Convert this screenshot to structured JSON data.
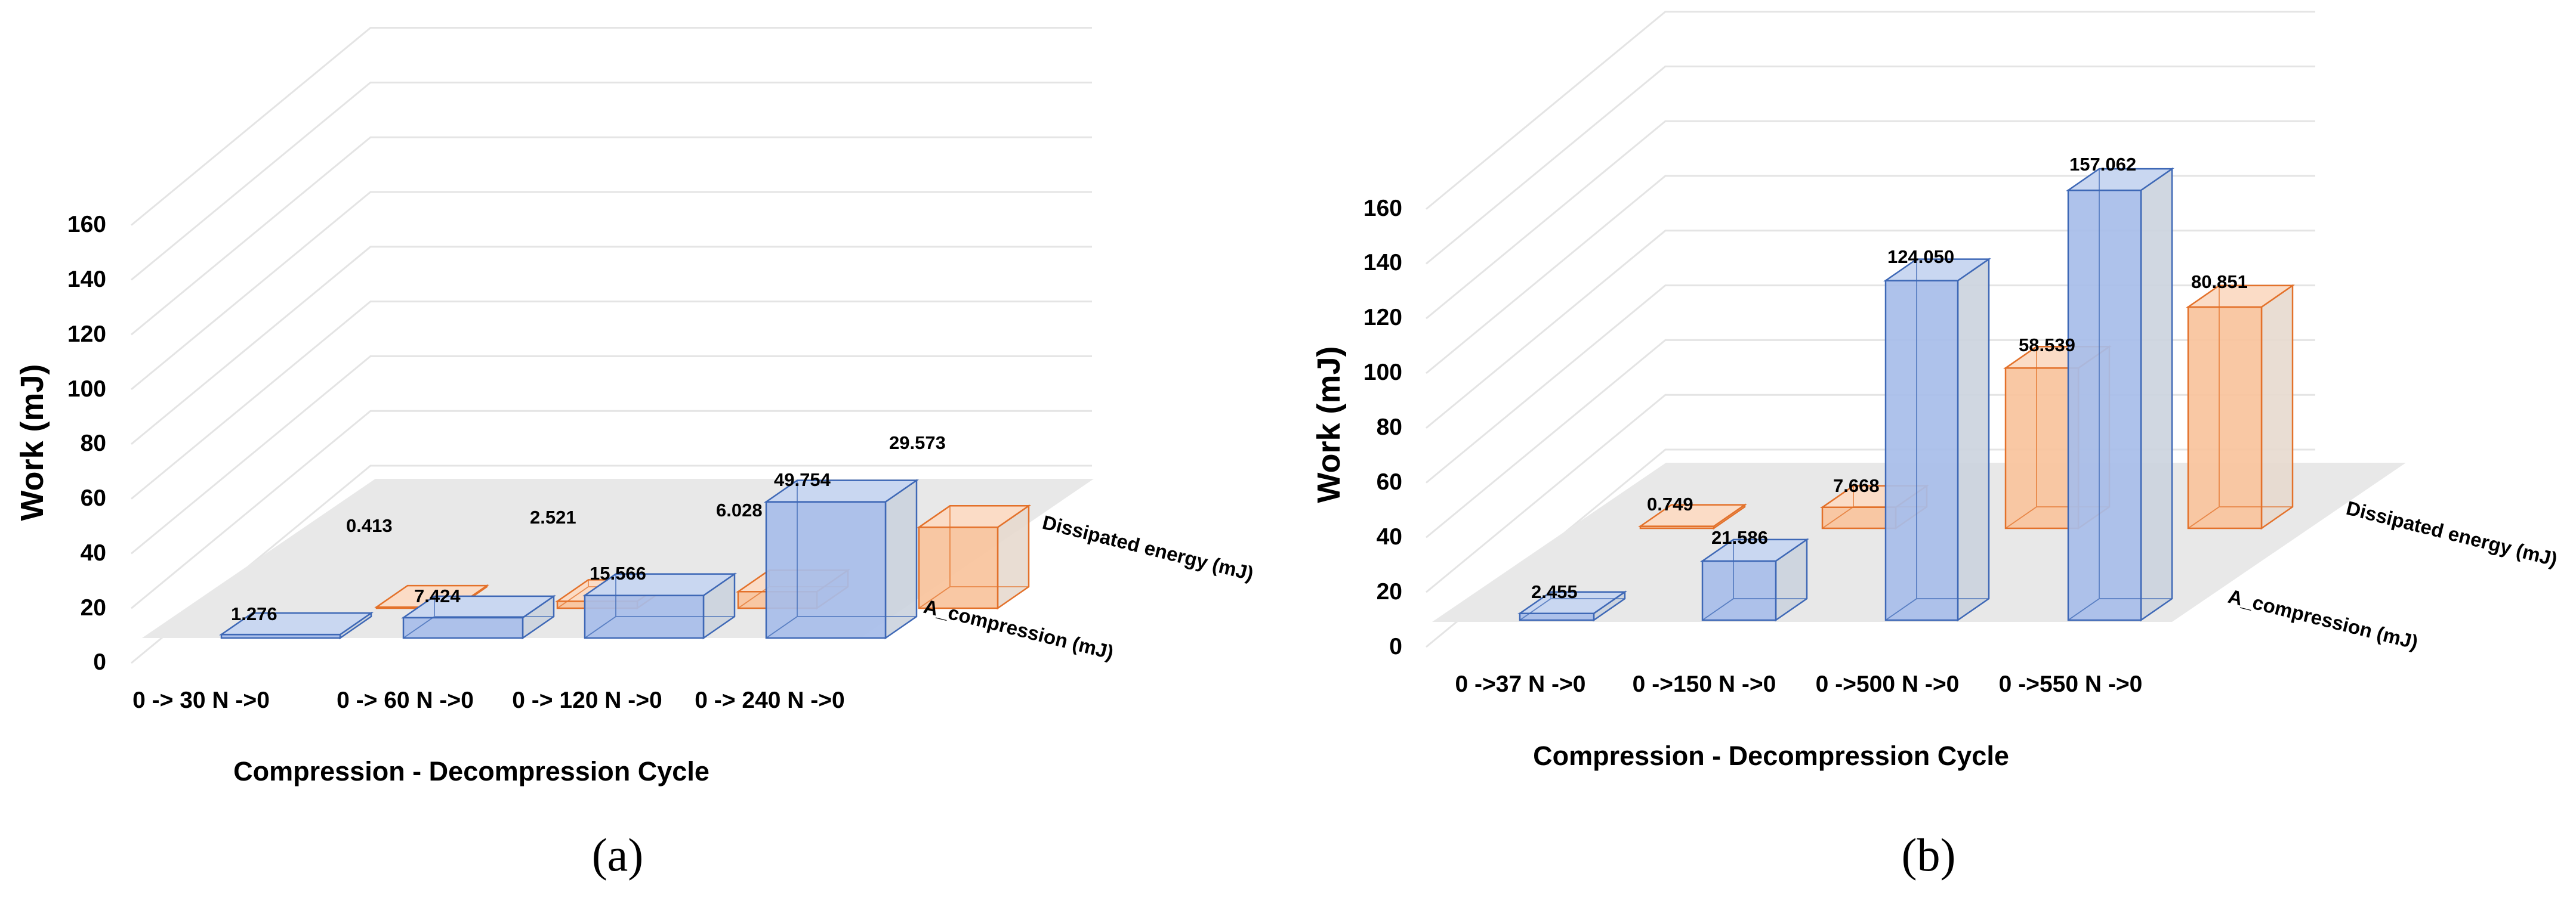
{
  "colors": {
    "blue_front": "#a7bde9",
    "blue_top": "#c9d7f1",
    "blue_side": "#cbd3de",
    "blue_edge": "#3e68b6",
    "orange_front": "#f8c39c",
    "orange_top": "#fbdcc6",
    "orange_side": "#e7d9ce",
    "orange_edge": "#e3712a",
    "floor": "#e8e8e8",
    "grid": "#e4e4e4"
  },
  "chart_data": [
    {
      "type": "bar",
      "panel_label": "(a)",
      "title": "",
      "categories": [
        "0 -> 30 N ->0",
        "0 -> 60 N ->0",
        "0 -> 120 N ->0",
        "0 -> 240 N ->0"
      ],
      "series": [
        {
          "name": "A_compression (mJ)",
          "values": [
            1.276,
            7.424,
            15.566,
            49.754
          ],
          "labels": [
            "1.276",
            "7.424",
            "15.566",
            "49.754"
          ],
          "color": "blue"
        },
        {
          "name": "Dissipated energy (mJ)",
          "values": [
            0.413,
            2.521,
            6.028,
            29.573
          ],
          "labels": [
            "0.413",
            "2.521",
            "6.028",
            "29.573"
          ],
          "color": "orange"
        }
      ],
      "xlabel": "Compression - Decompression Cycle",
      "ylabel": "Work (mJ)",
      "ylim": [
        0,
        160
      ],
      "yticks": [
        "0",
        "20",
        "40",
        "60",
        "80",
        "100",
        "120",
        "140",
        "160"
      ],
      "grid": true
    },
    {
      "type": "bar",
      "panel_label": "(b)",
      "title": "",
      "categories": [
        "0 ->37 N ->0",
        "0 ->150 N ->0",
        "0 ->500 N ->0",
        "0 ->550 N ->0"
      ],
      "series": [
        {
          "name": "A_compression (mJ)",
          "values": [
            2.455,
            21.586,
            124.05,
            157.062
          ],
          "labels": [
            "2.455",
            "21.586",
            "124.050",
            "157.062"
          ],
          "color": "blue"
        },
        {
          "name": "Dissipated energy (mJ)",
          "values": [
            0.749,
            7.668,
            58.539,
            80.851
          ],
          "labels": [
            "0.749",
            "7.668",
            "58.539",
            "80.851"
          ],
          "color": "orange"
        }
      ],
      "xlabel": "Compression - Decompression Cycle",
      "ylabel": "Work (mJ)",
      "ylim": [
        0,
        160
      ],
      "yticks": [
        "0",
        "20",
        "40",
        "60",
        "80",
        "100",
        "120",
        "140",
        "160"
      ],
      "grid": true
    }
  ]
}
